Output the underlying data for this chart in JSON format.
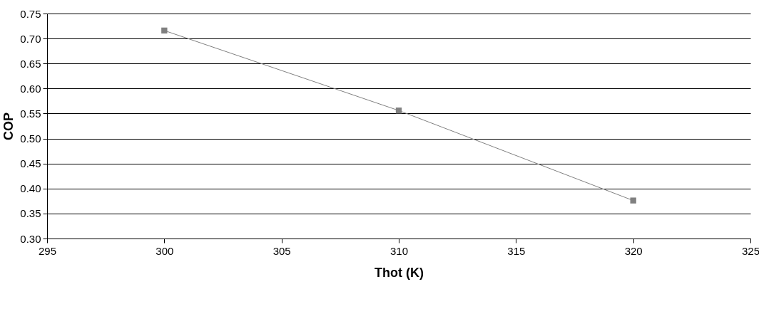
{
  "chart_data": {
    "type": "line",
    "xlabel": "Thot (K)",
    "ylabel": "COP",
    "x": [
      300,
      310,
      320
    ],
    "series": [
      {
        "color": "#808080",
        "values": [
          0.716,
          0.556,
          0.376
        ]
      }
    ],
    "xlim": [
      295,
      325
    ],
    "xticks": [
      295,
      300,
      305,
      310,
      315,
      320,
      325
    ],
    "ylim": [
      0.3,
      0.75
    ],
    "yticks": [
      {
        "value": 0.3,
        "label": "0.30"
      },
      {
        "value": 0.35,
        "label": "0.35"
      },
      {
        "value": 0.4,
        "label": "0.40"
      },
      {
        "value": 0.45,
        "label": "0.45"
      },
      {
        "value": 0.5,
        "label": "0.50"
      },
      {
        "value": 0.55,
        "label": "0.55"
      },
      {
        "value": 0.6,
        "label": "0.60"
      },
      {
        "value": 0.65,
        "label": "0.65"
      },
      {
        "value": 0.7,
        "label": "0.70"
      },
      {
        "value": 0.75,
        "label": "0.75"
      }
    ],
    "grid": "y",
    "marker": "square",
    "line_style": "solid"
  }
}
